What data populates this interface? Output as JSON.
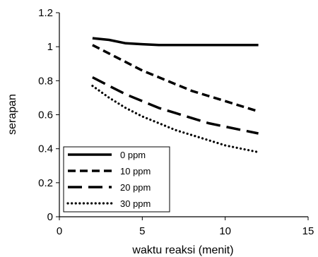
{
  "chart_data": {
    "type": "line",
    "title": "",
    "xlabel": "waktu reaksi (menit)",
    "ylabel": "serapan",
    "xlim": [
      0,
      15
    ],
    "ylim": [
      0,
      1.2
    ],
    "xticks": [
      0,
      5,
      10,
      15
    ],
    "yticks": [
      0,
      0.2,
      0.4,
      0.6,
      0.8,
      1,
      1.2
    ],
    "xtick_labels": [
      "0",
      "5",
      "10",
      "15"
    ],
    "ytick_labels": [
      "0",
      "0.2",
      "0.4",
      "0.6",
      "0.8",
      "1",
      "1.2"
    ],
    "grid": false,
    "legend_position": "bottom-left",
    "series": [
      {
        "name": "0 ppm",
        "style": "solid",
        "x": [
          2,
          3,
          4,
          5,
          6,
          7,
          8,
          9,
          10,
          11,
          12
        ],
        "y": [
          1.05,
          1.04,
          1.02,
          1.015,
          1.01,
          1.01,
          1.01,
          1.01,
          1.01,
          1.01,
          1.01
        ]
      },
      {
        "name": "10 ppm",
        "style": "dashed",
        "x": [
          2,
          3,
          4,
          5,
          6,
          7,
          8,
          9,
          10,
          11,
          12
        ],
        "y": [
          1.01,
          0.96,
          0.91,
          0.86,
          0.82,
          0.78,
          0.74,
          0.71,
          0.68,
          0.65,
          0.62
        ]
      },
      {
        "name": "20 ppm",
        "style": "longdash",
        "x": [
          2,
          3,
          4,
          5,
          6,
          7,
          8,
          9,
          10,
          11,
          12
        ],
        "y": [
          0.82,
          0.77,
          0.72,
          0.68,
          0.64,
          0.61,
          0.58,
          0.55,
          0.53,
          0.51,
          0.49
        ]
      },
      {
        "name": "30 ppm",
        "style": "dotted",
        "x": [
          2,
          3,
          4,
          5,
          6,
          7,
          8,
          9,
          10,
          11,
          12
        ],
        "y": [
          0.77,
          0.7,
          0.64,
          0.59,
          0.55,
          0.51,
          0.48,
          0.45,
          0.42,
          0.4,
          0.38
        ]
      }
    ]
  }
}
